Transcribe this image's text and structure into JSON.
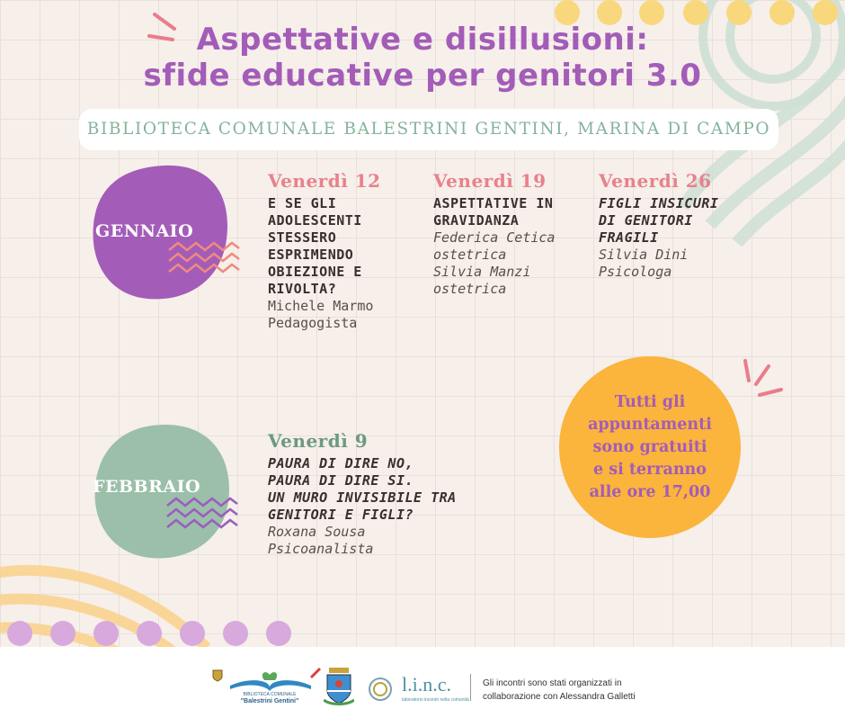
{
  "title": {
    "line1": "Aspettative e disillusioni:",
    "line2": "sfide educative per genitori 3.0"
  },
  "venue": "BIBLIOTECA COMUNALE BALESTRINI GENTINI, MARINA DI CAMPO",
  "months": {
    "gennaio": "GENNAIO",
    "febbraio": "FEBBRAIO"
  },
  "events": [
    {
      "day": "Venerdì 12",
      "title_lines": [
        "E SE GLI",
        "ADOLESCENTI",
        "STESSERO",
        "ESPRIMENDO",
        "OBIEZIONE E",
        "RIVOLTA?"
      ],
      "speaker_lines": [
        "Michele Marmo",
        "Pedagogista"
      ]
    },
    {
      "day": "Venerdì 19",
      "title_lines": [
        "ASPETTATIVE IN",
        "GRAVIDANZA"
      ],
      "speaker_lines": [
        "Federica Cetica",
        "ostetrica",
        "Silvia Manzi",
        "ostetrica"
      ]
    },
    {
      "day": "Venerdì 26",
      "title_lines": [
        "FIGLI INSICURI",
        "DI GENITORI",
        "FRAGILI"
      ],
      "speaker_lines": [
        "Silvia Dini",
        "Psicologa"
      ]
    },
    {
      "day": "Venerdì 9",
      "title_lines": [
        "PAURA DI DIRE NO,",
        "PAURA DI DIRE SI.",
        "UN MURO INVISIBILE TRA",
        "GENITORI E FIGLI?"
      ],
      "speaker_lines": [
        "Roxana Sousa",
        "Psicoanalista"
      ]
    }
  ],
  "free_note_lines": [
    "Tutti gli",
    "appuntamenti",
    "sono gratuiti",
    "e si terranno",
    "alle ore 17,00"
  ],
  "footer": {
    "logo_text_1": "BIBLIOTECA COMUNALE",
    "logo_text_2": "\"Balestrini Gentini\"",
    "linc_text": "l.i.n.c.",
    "linc_sub": "laboratorio incontri nella comunità",
    "note_line1": "Gli incontri sono stati organizzati in",
    "note_line2": "collaborazione con Alessandra Galletti"
  },
  "colors": {
    "purple": "#a35cb8",
    "green": "#9bbfa8",
    "pink": "#e8818c",
    "yellow": "#fbb43c",
    "lilac": "#d8a9dc"
  }
}
